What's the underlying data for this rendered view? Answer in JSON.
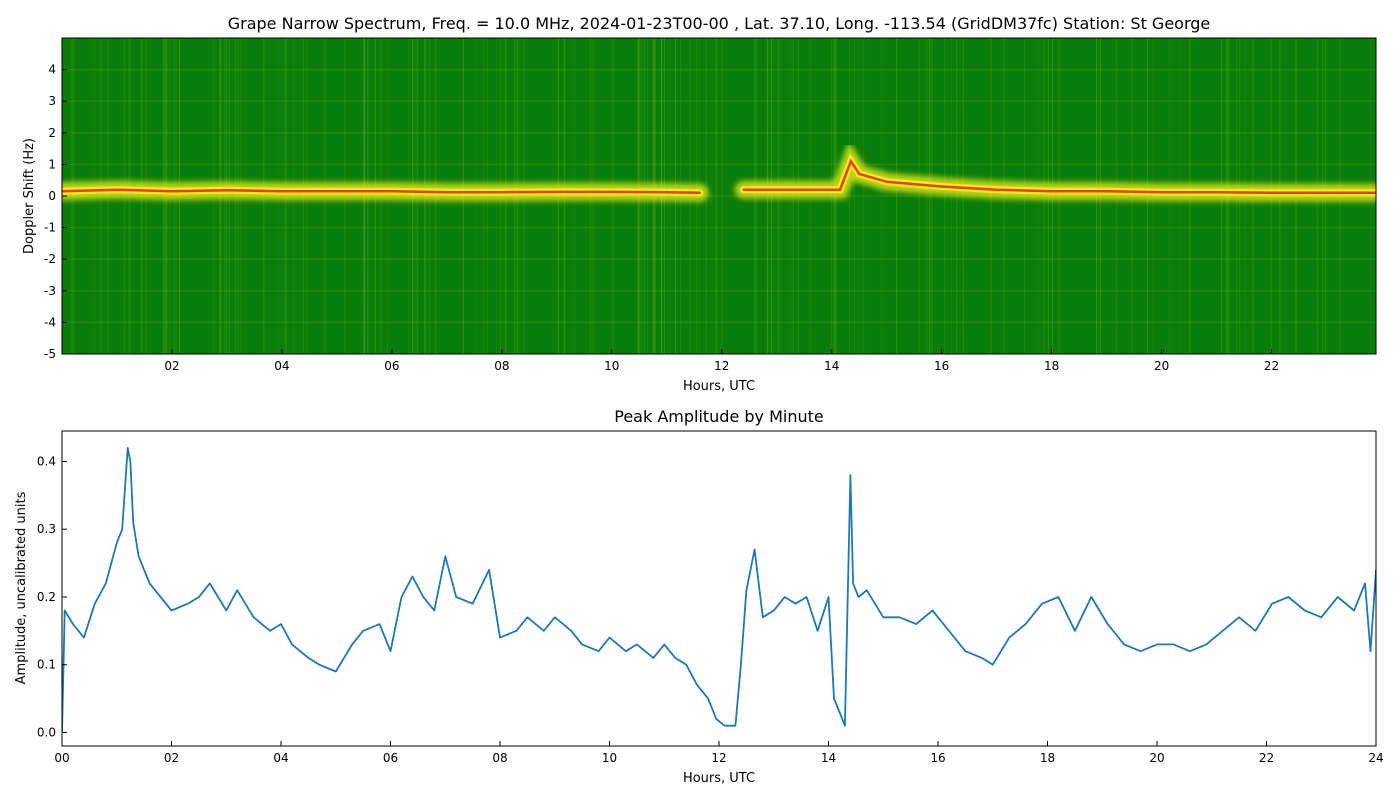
{
  "figure": {
    "colors": {
      "spectrum_background": "#0a7d0a",
      "spectrum_mid": "#7fcf1a",
      "spectrum_high": "#f4ef1a",
      "spectrum_peak": "#f03a12",
      "line": "#1f77b4"
    }
  },
  "chart_data": [
    {
      "type": "heatmap",
      "title": "Grape Narrow Spectrum, Freq. = 10.0 MHz, 2024-01-23T00-00 , Lat.  37.10, Long. -113.54 (GridDM37fc) Station: St George",
      "xlabel": "Hours, UTC",
      "ylabel": "Doppler Shift (Hz)",
      "xlim": [
        0,
        23.9
      ],
      "ylim": [
        -5,
        5
      ],
      "xticks": [
        "02",
        "04",
        "06",
        "08",
        "10",
        "12",
        "14",
        "16",
        "18",
        "20",
        "22"
      ],
      "xtick_values": [
        2,
        4,
        6,
        8,
        10,
        12,
        14,
        16,
        18,
        20,
        22
      ],
      "yticks": [
        "4",
        "3",
        "2",
        "1",
        "0",
        "-1",
        "-2",
        "-3",
        "-4",
        "-5"
      ],
      "ytick_values": [
        4,
        3,
        2,
        1,
        0,
        -1,
        -2,
        -3,
        -4,
        -5
      ],
      "colormap": "green-yellow-red",
      "carrier_trace": {
        "x": [
          0,
          1,
          2,
          3,
          4,
          5,
          6,
          7,
          8,
          9,
          10,
          11,
          11.6,
          11.9,
          12.2,
          12.4,
          13,
          14,
          14.15,
          14.35,
          14.5,
          15,
          16,
          17,
          18,
          19,
          20,
          21,
          22,
          23,
          23.9
        ],
        "y": [
          0.15,
          0.2,
          0.15,
          0.18,
          0.15,
          0.15,
          0.15,
          0.12,
          0.12,
          0.13,
          0.13,
          0.12,
          0.1,
          null,
          null,
          0.2,
          0.2,
          0.2,
          0.2,
          1.1,
          0.7,
          0.45,
          0.3,
          0.2,
          0.15,
          0.15,
          0.12,
          0.12,
          0.1,
          0.1,
          0.1
        ]
      }
    },
    {
      "type": "line",
      "title": "Peak Amplitude by Minute",
      "xlabel": "Hours, UTC",
      "ylabel": "Amplitude, uncalibrated units",
      "xlim": [
        0,
        24
      ],
      "ylim": [
        -0.02,
        0.445
      ],
      "xticks": [
        "00",
        "02",
        "04",
        "06",
        "08",
        "10",
        "12",
        "14",
        "16",
        "18",
        "20",
        "22",
        "24"
      ],
      "xtick_values": [
        0,
        2,
        4,
        6,
        8,
        10,
        12,
        14,
        16,
        18,
        20,
        22,
        24
      ],
      "yticks": [
        "0.0",
        "0.1",
        "0.2",
        "0.3",
        "0.4"
      ],
      "ytick_values": [
        0,
        0.1,
        0.2,
        0.3,
        0.4
      ],
      "series": [
        {
          "x": [
            0,
            0.05,
            0.2,
            0.4,
            0.6,
            0.8,
            1.0,
            1.1,
            1.2,
            1.25,
            1.3,
            1.4,
            1.6,
            1.8,
            2.0,
            2.3,
            2.5,
            2.7,
            3.0,
            3.2,
            3.5,
            3.8,
            4.0,
            4.2,
            4.5,
            4.7,
            5.0,
            5.3,
            5.5,
            5.8,
            6.0,
            6.2,
            6.4,
            6.6,
            6.8,
            7.0,
            7.2,
            7.5,
            7.8,
            8.0,
            8.3,
            8.5,
            8.8,
            9.0,
            9.3,
            9.5,
            9.8,
            10.0,
            10.3,
            10.5,
            10.8,
            11.0,
            11.2,
            11.4,
            11.6,
            11.8,
            11.95,
            12.1,
            12.25,
            12.3,
            12.4,
            12.5,
            12.65,
            12.8,
            13.0,
            13.2,
            13.4,
            13.6,
            13.8,
            14.0,
            14.1,
            14.2,
            14.3,
            14.4,
            14.45,
            14.55,
            14.7,
            15.0,
            15.3,
            15.6,
            15.9,
            16.2,
            16.5,
            16.8,
            17.0,
            17.3,
            17.6,
            17.9,
            18.2,
            18.5,
            18.8,
            19.1,
            19.4,
            19.7,
            20.0,
            20.3,
            20.6,
            20.9,
            21.2,
            21.5,
            21.8,
            22.1,
            22.4,
            22.7,
            23.0,
            23.3,
            23.6,
            23.8,
            23.9,
            24.0
          ],
          "y": [
            0.0,
            0.18,
            0.16,
            0.14,
            0.19,
            0.22,
            0.28,
            0.3,
            0.42,
            0.4,
            0.31,
            0.26,
            0.22,
            0.2,
            0.18,
            0.19,
            0.2,
            0.22,
            0.18,
            0.21,
            0.17,
            0.15,
            0.16,
            0.13,
            0.11,
            0.1,
            0.09,
            0.13,
            0.15,
            0.16,
            0.12,
            0.2,
            0.23,
            0.2,
            0.18,
            0.26,
            0.2,
            0.19,
            0.24,
            0.14,
            0.15,
            0.17,
            0.15,
            0.17,
            0.15,
            0.13,
            0.12,
            0.14,
            0.12,
            0.13,
            0.11,
            0.13,
            0.11,
            0.1,
            0.07,
            0.05,
            0.02,
            0.01,
            0.01,
            0.01,
            0.1,
            0.21,
            0.27,
            0.17,
            0.18,
            0.2,
            0.19,
            0.2,
            0.15,
            0.2,
            0.05,
            0.03,
            0.01,
            0.38,
            0.22,
            0.2,
            0.21,
            0.17,
            0.17,
            0.16,
            0.18,
            0.15,
            0.12,
            0.11,
            0.1,
            0.14,
            0.16,
            0.19,
            0.2,
            0.15,
            0.2,
            0.16,
            0.13,
            0.12,
            0.13,
            0.13,
            0.12,
            0.13,
            0.15,
            0.17,
            0.15,
            0.19,
            0.2,
            0.18,
            0.17,
            0.2,
            0.18,
            0.22,
            0.12,
            0.24
          ]
        }
      ]
    }
  ]
}
